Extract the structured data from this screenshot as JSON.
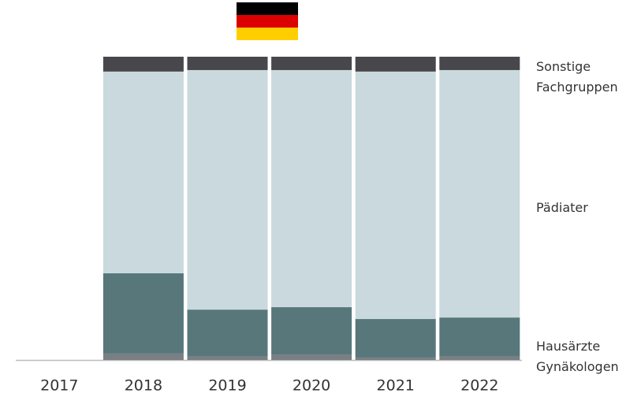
{
  "chart_data": {
    "type": "stacked_bar_100",
    "categories": [
      "2017",
      "2018",
      "2019",
      "2020",
      "2021",
      "2022"
    ],
    "series": [
      {
        "name": "Gynäkologen",
        "color": "#7a7f83",
        "values": [
          null,
          2.1,
          1.3,
          1.8,
          0.8,
          1.3
        ]
      },
      {
        "name": "Hausärzte",
        "color": "#57777b",
        "values": [
          null,
          26.5,
          15.3,
          15.6,
          12.7,
          12.7
        ]
      },
      {
        "name": "Pädiater",
        "color": "#c9d9dd",
        "values": [
          null,
          66.5,
          79.0,
          78.2,
          81.6,
          81.6
        ]
      },
      {
        "name": "Sonstige Fachgruppen",
        "color": "#48474b",
        "values": [
          null,
          4.9,
          4.4,
          4.4,
          4.9,
          4.4
        ]
      }
    ],
    "ylim": [
      0,
      100
    ]
  }
}
